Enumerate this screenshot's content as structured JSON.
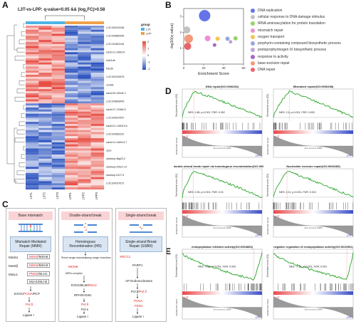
{
  "panels": {
    "A": "A",
    "B": "B",
    "C": "C",
    "D": "D",
    "E": "E"
  },
  "heatmap": {
    "title": "L3T-vs-LPP: q-value<0.05 && |log",
    "title_sub": "2",
    "title_end": "FC|>0.58",
    "legend_group_title": "group",
    "groups": [
      "L3T",
      "LPP"
    ],
    "group_colors": [
      "#4db3e6",
      "#f0a04b"
    ],
    "scale_ticks": [
      "2",
      "1",
      "0",
      "-1",
      "-2"
    ],
    "columns": [
      "L3T1",
      "L3T2",
      "L3T3",
      "LPP1",
      "LPP2",
      "LPP3"
    ],
    "row_labels": [
      "LOC100010048",
      "LOC109885345",
      "LOC110463128",
      "sizchr11-106014",
      "nhtx1db",
      "frdcd0",
      "LOC100149676",
      "ccrtdtx",
      "sizchr25-494nK.1",
      "LOC109808405",
      "sizchr17-22984.5",
      "LOC100537597",
      "sizchr21-146013.8",
      "LOC109962022",
      "sizchr11-146013.7",
      "cpox",
      "slcdwep-48g23.2",
      "slcdwep-225cf-1.5",
      "slcdwep-2417.5",
      "LOC100037672"
    ]
  },
  "chart_data": {
    "type": "scatter",
    "xlabel": "Enrichment Score",
    "ylabel": "-log10(q value)",
    "x_ticks": [
      "0",
      "20",
      "40",
      "60"
    ],
    "y_ticks": [
      "1",
      "2",
      "3"
    ],
    "xlim": [
      0,
      60
    ],
    "ylim": [
      0,
      3.5
    ],
    "series": [
      {
        "name": "DNA replication",
        "color": "#6474e8",
        "x": 21,
        "y": 3.05,
        "size": 8
      },
      {
        "name": "cellular response to DNA damage stimulus",
        "color": "#c2c2c2",
        "x": 3,
        "y": 2.15,
        "size": 5
      },
      {
        "name": "tRNA aminoacylation for protein translation",
        "color": "#9ad06a",
        "x": 52,
        "y": 1.62,
        "size": 3
      },
      {
        "name": "mismatch repair",
        "color": "#ee8fd4",
        "x": 24,
        "y": 1.62,
        "size": 4
      },
      {
        "name": "oxygen transport",
        "color": "#f6c453",
        "x": 34,
        "y": 1.6,
        "size": 3
      },
      {
        "name": "porphyrin-containing compound biosynthetic process",
        "color": "#9aa7d8",
        "x": 44,
        "y": 1.6,
        "size": 3
      },
      {
        "name": "protoporphyrinogen IX biosynthetic process",
        "color": "#bfa6d6",
        "x": 47,
        "y": 1.4,
        "size": 2.5
      },
      {
        "name": "response to activity",
        "color": "#a266c7",
        "x": 31,
        "y": 1.2,
        "size": 2.5
      },
      {
        "name": "base-excision repair",
        "color": "#f39a7a",
        "x": 5,
        "y": 1.6,
        "size": 6
      },
      {
        "name": "DNA repair",
        "color": "#e9656b",
        "x": 4,
        "y": 1.12,
        "size": 5
      }
    ]
  },
  "gsea_D": [
    {
      "title": "DNA repair(GO:0006281)",
      "stats": "NES: 1.88, p=0.001, FDR: 0.002",
      "ylabel": "Enrichment score (ES)",
      "rlabel": "Ranked list metric",
      "left": "L3T",
      "right": "LPP",
      "xnote": "Zero cross at 12689",
      "peak": 0.31,
      "peak_pos": 0.15
    },
    {
      "title": "Mismatch repair(GO:0006298)",
      "stats": "NES: 2.5, p=0.001, FDR: 0.003",
      "ylabel": "Enrichment score (ES)",
      "rlabel": "Ranked list metric",
      "left": "L3T",
      "right": "LPP",
      "xnote": "Zero cross at 12689",
      "peak": 0.62,
      "peak_pos": 0.2
    },
    {
      "title": "double-strand break repair via homologous recombination(GO:0000724)",
      "stats": "NES: 2.05, p=0.001, FDR: 0.01",
      "ylabel": "Enrichment score (ES)",
      "rlabel": "Ranked list metric",
      "left": "L3T",
      "right": "LPP",
      "xnote": "Zero cross at 12689",
      "peak": 0.46,
      "peak_pos": 0.14
    },
    {
      "title": "Nucleotide excision repair(GO:0006289)",
      "stats": "NES: 2.01, p=0.001, FDR: 0.013",
      "ylabel": "Enrichment score (ES)",
      "rlabel": "Ranked list metric",
      "left": "L3T",
      "right": "LPP",
      "xnote": "Zero cross at 12689",
      "peak": 0.48,
      "peak_pos": 0.17
    }
  ],
  "gsea_E": [
    {
      "title": "endopeptidase inhibitor activity(GO:0004866)",
      "stats": "NES: -2.12, p=0.001, FDR: 0.005",
      "ylabel": "Enrichment score (ES)",
      "rlabel": "Ranked list metric",
      "left": "L3T",
      "right": "LPP",
      "xnote": "Zero cross at 12689",
      "peak": -0.56,
      "peak_pos": 0.9
    },
    {
      "title": "negative regulation of endopeptidase activity(GO:0010951)",
      "stats": "NES: -1.91, p=0.001, FDR: 0.003",
      "ylabel": "Enrichment score (ES)",
      "rlabel": "Ranked list metric",
      "left": "L3T",
      "right": "LPP",
      "xnote": "Zero cross at 12689",
      "peak": -0.6,
      "peak_pos": 0.92
    }
  ],
  "diagram": {
    "col1_header": "Base mismatch",
    "col2_header": "Double-strand break",
    "col3_header": "Single-strand break",
    "col1_box": "Mismatch Mediated Repair (MMR)",
    "col2_box": "Homologous Recombination (HR)",
    "col3_box": "Single-strand Break Repair (SSBR)",
    "mut_labels": [
      "MutSα",
      "MutSβ",
      "MutLα"
    ],
    "mut_a": [
      "MSH2",
      "/MSH6"
    ],
    "mut_b": [
      "MSH2",
      "/MSH3"
    ],
    "mut_c": [
      "PMS2",
      "/MLH1"
    ],
    "mut_d": "MLH1/MLH3",
    "col1_exo": [
      "EXO1/",
      "PCNA",
      "/RCF"
    ],
    "col1_pol": "Pol δ",
    "col1_lig": "Ligase I",
    "col2_short": "Short range resection",
    "col2_long": "Long range resection",
    "col2_mcm": "MCM5",
    "col2_mrn": "MRN complex",
    "col2_exo": [
      "EXO1/BLM/",
      "DNA2"
    ],
    "col2_rpa": "RPA/RAD51",
    "col2_pol": "Pol δ",
    "col2_polk": "Pol κ",
    "col2_lig": "Ligase I",
    "col3_xrcc": "XRCC1",
    "col3_parp": "PARP1",
    "col3_ap": "AP Endonucleases",
    "col3_pol": [
      "Pol β/",
      "Pol δ"
    ],
    "col3_pcna": "PCNA",
    "col3_fen": "FEN1",
    "col3_lig": "Ligase I"
  }
}
